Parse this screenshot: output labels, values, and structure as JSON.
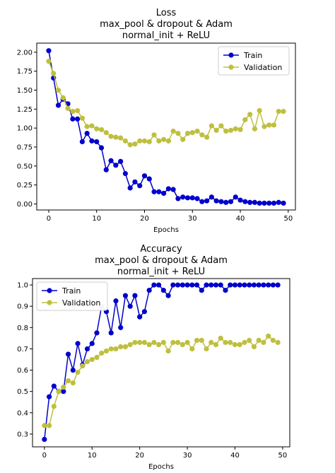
{
  "chart_data": [
    {
      "type": "line",
      "title": [
        "Loss",
        "max_pool & dropout & Adam",
        "normal_init + ReLU"
      ],
      "xlabel": "Epochs",
      "ylabel": "",
      "xlim": [
        -2.5,
        51.5
      ],
      "ylim": [
        -0.08,
        2.12
      ],
      "xticks": [
        0,
        10,
        20,
        30,
        40,
        50
      ],
      "xtick_labels": [
        "0",
        "10",
        "20",
        "30",
        "40",
        "50"
      ],
      "yticks": [
        0.0,
        0.25,
        0.5,
        0.75,
        1.0,
        1.25,
        1.5,
        1.75,
        2.0
      ],
      "ytick_labels": [
        "0.00",
        "0.25",
        "0.50",
        "0.75",
        "1.00",
        "1.25",
        "1.50",
        "1.75",
        "2.00"
      ],
      "grid": false,
      "legend": "upper-right",
      "x": [
        0,
        1,
        2,
        3,
        4,
        5,
        6,
        7,
        8,
        9,
        10,
        11,
        12,
        13,
        14,
        15,
        16,
        17,
        18,
        19,
        20,
        21,
        22,
        23,
        24,
        25,
        26,
        27,
        28,
        29,
        30,
        31,
        32,
        33,
        34,
        35,
        36,
        37,
        38,
        39,
        40,
        41,
        42,
        43,
        44,
        45,
        46,
        47,
        48,
        49
      ],
      "series": [
        {
          "name": "Train",
          "color": "#0000cc",
          "values": [
            2.02,
            1.66,
            1.3,
            1.38,
            1.32,
            1.12,
            1.12,
            0.82,
            0.93,
            0.83,
            0.82,
            0.74,
            0.45,
            0.57,
            0.51,
            0.56,
            0.4,
            0.21,
            0.29,
            0.24,
            0.37,
            0.33,
            0.16,
            0.16,
            0.14,
            0.2,
            0.19,
            0.07,
            0.09,
            0.08,
            0.08,
            0.07,
            0.03,
            0.04,
            0.09,
            0.04,
            0.03,
            0.02,
            0.03,
            0.09,
            0.05,
            0.03,
            0.02,
            0.02,
            0.01,
            0.01,
            0.01,
            0.01,
            0.02,
            0.01
          ]
        },
        {
          "name": "Validation",
          "color": "#bfbf3f",
          "values": [
            1.88,
            1.72,
            1.5,
            1.4,
            1.26,
            1.22,
            1.23,
            1.13,
            1.02,
            1.03,
            0.99,
            0.98,
            0.94,
            0.89,
            0.88,
            0.87,
            0.83,
            0.78,
            0.79,
            0.83,
            0.83,
            0.82,
            0.91,
            0.83,
            0.85,
            0.83,
            0.96,
            0.93,
            0.85,
            0.93,
            0.94,
            0.96,
            0.91,
            0.88,
            1.03,
            0.97,
            1.03,
            0.96,
            0.97,
            0.99,
            0.98,
            1.11,
            1.18,
            0.99,
            1.23,
            1.02,
            1.04,
            1.04,
            1.22,
            1.22
          ]
        }
      ]
    },
    {
      "type": "line",
      "title": [
        "Accuracy",
        "max_pool & dropout & Adam",
        "normal_init + ReLU"
      ],
      "xlabel": "Epochs",
      "ylabel": "",
      "xlim": [
        -2.5,
        51.5
      ],
      "ylim": [
        0.24,
        1.03
      ],
      "xticks": [
        0,
        10,
        20,
        30,
        40,
        50
      ],
      "xtick_labels": [
        "0",
        "10",
        "20",
        "30",
        "40",
        "50"
      ],
      "yticks": [
        0.3,
        0.4,
        0.5,
        0.6,
        0.7,
        0.8,
        0.9,
        1.0
      ],
      "ytick_labels": [
        "0.3",
        "0.4",
        "0.5",
        "0.6",
        "0.7",
        "0.8",
        "0.9",
        "1.0"
      ],
      "grid": false,
      "legend": "upper-left",
      "x": [
        0,
        1,
        2,
        3,
        4,
        5,
        6,
        7,
        8,
        9,
        10,
        11,
        12,
        13,
        14,
        15,
        16,
        17,
        18,
        19,
        20,
        21,
        22,
        23,
        24,
        25,
        26,
        27,
        28,
        29,
        30,
        31,
        32,
        33,
        34,
        35,
        36,
        37,
        38,
        39,
        40,
        41,
        42,
        43,
        44,
        45,
        46,
        47,
        48,
        49
      ],
      "series": [
        {
          "name": "Train",
          "color": "#0000cc",
          "values": [
            0.275,
            0.475,
            0.525,
            0.5,
            0.5,
            0.675,
            0.6,
            0.725,
            0.625,
            0.7,
            0.725,
            0.775,
            0.9,
            0.875,
            0.775,
            0.925,
            0.8,
            0.95,
            0.9,
            0.95,
            0.85,
            0.875,
            0.975,
            1.0,
            1.0,
            0.975,
            0.95,
            1.0,
            1.0,
            1.0,
            1.0,
            1.0,
            1.0,
            0.975,
            1.0,
            1.0,
            1.0,
            1.0,
            0.975,
            1.0,
            1.0,
            1.0,
            1.0,
            1.0,
            1.0,
            1.0,
            1.0,
            1.0,
            1.0,
            1.0
          ]
        },
        {
          "name": "Validation",
          "color": "#bfbf3f",
          "values": [
            0.34,
            0.34,
            0.43,
            0.5,
            0.52,
            0.55,
            0.54,
            0.59,
            0.62,
            0.64,
            0.65,
            0.66,
            0.68,
            0.69,
            0.7,
            0.7,
            0.71,
            0.71,
            0.72,
            0.73,
            0.73,
            0.73,
            0.72,
            0.73,
            0.72,
            0.73,
            0.69,
            0.73,
            0.73,
            0.72,
            0.73,
            0.7,
            0.74,
            0.74,
            0.7,
            0.73,
            0.72,
            0.75,
            0.73,
            0.73,
            0.72,
            0.72,
            0.73,
            0.74,
            0.71,
            0.74,
            0.73,
            0.76,
            0.74,
            0.73
          ]
        }
      ]
    }
  ]
}
